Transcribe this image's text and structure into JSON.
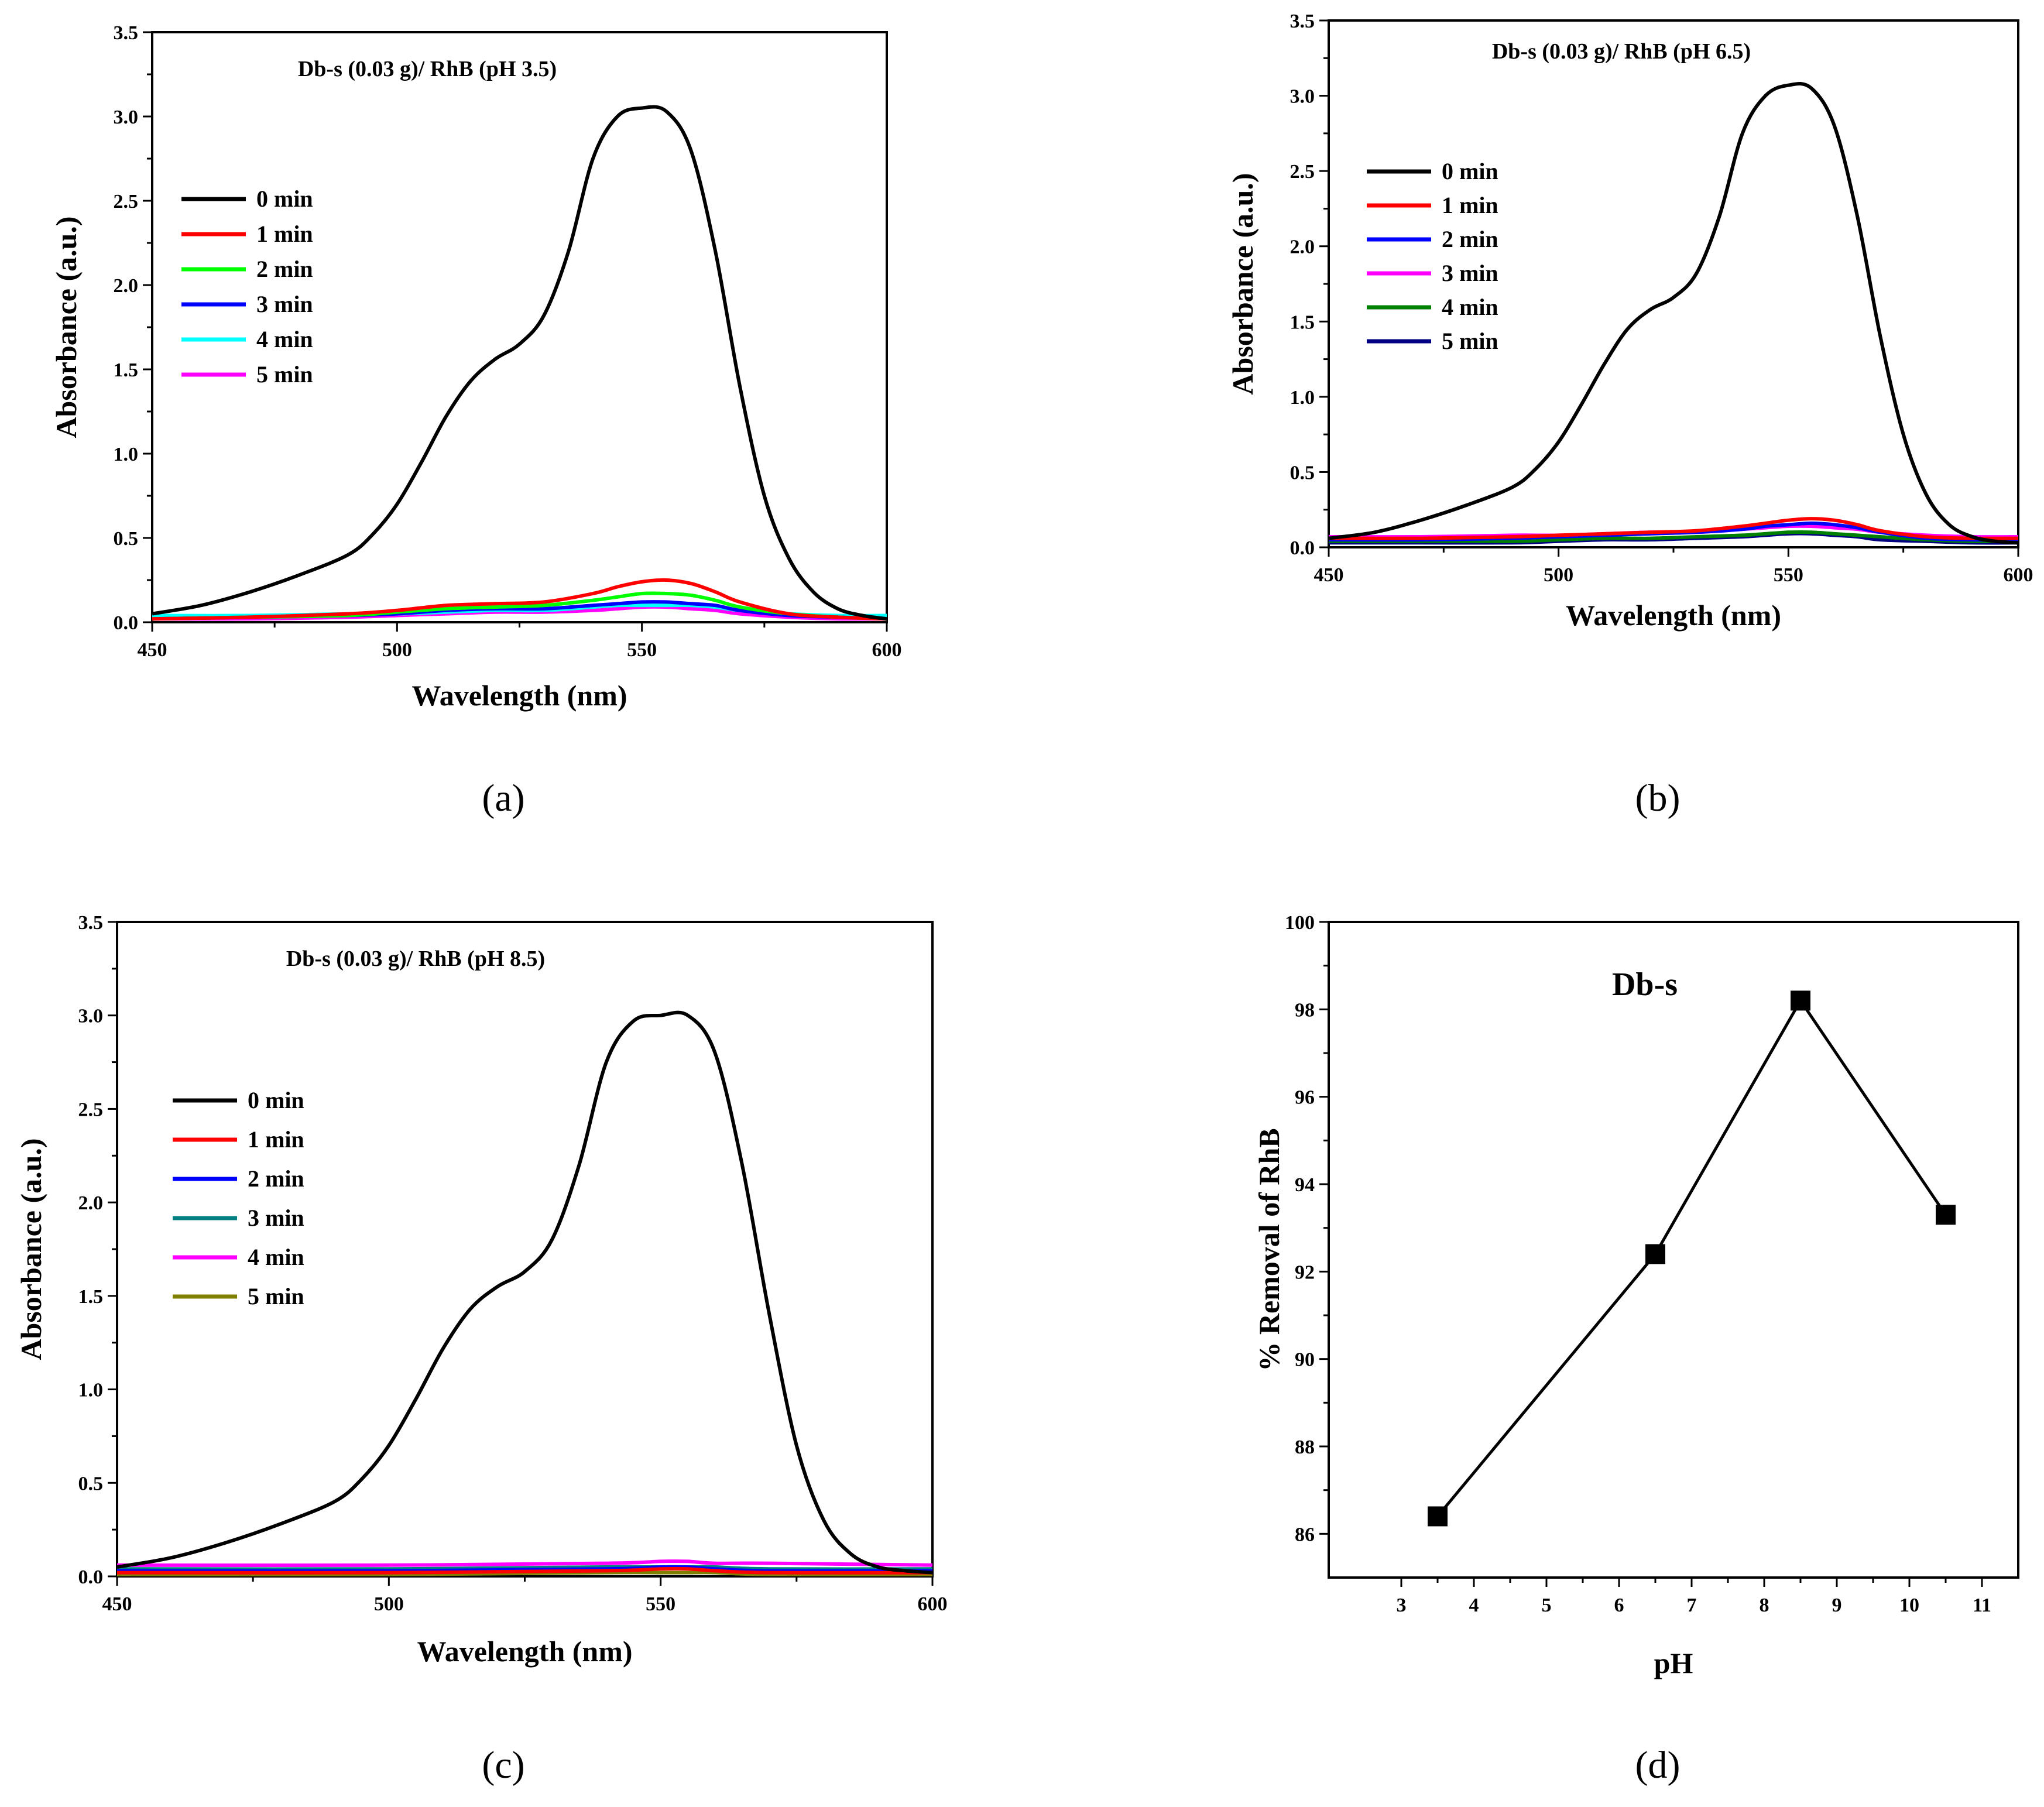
{
  "chart_data": [
    {
      "type": "line",
      "panel_label": "(a)",
      "title": "Db-s (0.03 g)/ RhB (pH 3.5)",
      "xlabel": "Wavelength (nm)",
      "ylabel": "Absorbance (a.u.)",
      "xlim": [
        450,
        600
      ],
      "ylim": [
        0,
        3.5
      ],
      "xticks": [
        "450",
        "500",
        "550",
        "600"
      ],
      "yticks": [
        "0.0",
        "0.5",
        "1.0",
        "1.5",
        "2.0",
        "2.5",
        "3.0",
        "3.5"
      ],
      "legend_position": "upper-left",
      "series": [
        {
          "name": "0 min",
          "color": "#000000",
          "x": [
            450,
            460,
            470,
            480,
            490,
            495,
            500,
            505,
            510,
            515,
            520,
            525,
            530,
            535,
            540,
            545,
            550,
            555,
            560,
            565,
            570,
            575,
            580,
            585,
            590,
            595,
            600
          ],
          "y": [
            0.05,
            0.1,
            0.18,
            0.28,
            0.4,
            0.52,
            0.7,
            0.95,
            1.22,
            1.43,
            1.56,
            1.65,
            1.82,
            2.2,
            2.75,
            3.0,
            3.05,
            3.03,
            2.8,
            2.2,
            1.4,
            0.75,
            0.38,
            0.18,
            0.08,
            0.04,
            0.02
          ]
        },
        {
          "name": "1 min",
          "color": "#ff0000",
          "x": [
            450,
            470,
            490,
            500,
            510,
            520,
            530,
            540,
            545,
            550,
            555,
            560,
            565,
            570,
            580,
            590,
            600
          ],
          "y": [
            0.02,
            0.03,
            0.05,
            0.07,
            0.1,
            0.11,
            0.12,
            0.17,
            0.21,
            0.24,
            0.25,
            0.23,
            0.18,
            0.12,
            0.05,
            0.03,
            0.02
          ]
        },
        {
          "name": "2 min",
          "color": "#00ff00",
          "x": [
            450,
            470,
            490,
            500,
            510,
            520,
            530,
            540,
            545,
            550,
            555,
            560,
            565,
            570,
            580,
            590,
            600
          ],
          "y": [
            0.02,
            0.03,
            0.04,
            0.06,
            0.08,
            0.09,
            0.1,
            0.13,
            0.15,
            0.17,
            0.17,
            0.16,
            0.13,
            0.09,
            0.05,
            0.03,
            0.02
          ]
        },
        {
          "name": "3 min",
          "color": "#0000ff",
          "x": [
            450,
            470,
            490,
            500,
            510,
            520,
            530,
            540,
            545,
            550,
            555,
            560,
            565,
            570,
            580,
            590,
            600
          ],
          "y": [
            0.02,
            0.03,
            0.04,
            0.05,
            0.07,
            0.08,
            0.08,
            0.1,
            0.11,
            0.12,
            0.12,
            0.11,
            0.1,
            0.07,
            0.04,
            0.03,
            0.02
          ]
        },
        {
          "name": "4 min",
          "color": "#00ffff",
          "x": [
            450,
            470,
            490,
            500,
            510,
            520,
            530,
            540,
            545,
            550,
            555,
            560,
            565,
            570,
            580,
            590,
            600
          ],
          "y": [
            0.04,
            0.04,
            0.05,
            0.05,
            0.06,
            0.07,
            0.07,
            0.09,
            0.1,
            0.1,
            0.1,
            0.1,
            0.09,
            0.07,
            0.05,
            0.04,
            0.04
          ]
        },
        {
          "name": "5 min",
          "color": "#ff00ff",
          "x": [
            450,
            470,
            490,
            500,
            510,
            520,
            530,
            540,
            545,
            550,
            555,
            560,
            565,
            570,
            580,
            590,
            600
          ],
          "y": [
            0.02,
            0.02,
            0.03,
            0.04,
            0.05,
            0.06,
            0.06,
            0.07,
            0.08,
            0.09,
            0.09,
            0.08,
            0.07,
            0.05,
            0.03,
            0.02,
            0.02
          ]
        }
      ]
    },
    {
      "type": "line",
      "panel_label": "(b)",
      "title": "Db-s (0.03 g)/ RhB (pH 6.5)",
      "xlabel": "Wavelength (nm)",
      "ylabel": "Absorbance (a.u.)",
      "xlim": [
        450,
        600
      ],
      "ylim": [
        0,
        3.5
      ],
      "xticks": [
        "450",
        "500",
        "550",
        "600"
      ],
      "yticks": [
        "0.0",
        "0.5",
        "1.0",
        "1.5",
        "2.0",
        "2.5",
        "3.0",
        "3.5"
      ],
      "legend_position": "upper-left",
      "series": [
        {
          "name": "0 min",
          "color": "#000000",
          "x": [
            450,
            460,
            470,
            480,
            490,
            495,
            500,
            505,
            510,
            515,
            520,
            525,
            530,
            535,
            540,
            545,
            550,
            555,
            560,
            565,
            570,
            575,
            580,
            585,
            590,
            595,
            600
          ],
          "y": [
            0.06,
            0.1,
            0.18,
            0.28,
            0.4,
            0.52,
            0.7,
            0.95,
            1.22,
            1.45,
            1.58,
            1.66,
            1.82,
            2.2,
            2.75,
            3.0,
            3.07,
            3.05,
            2.8,
            2.2,
            1.4,
            0.75,
            0.35,
            0.15,
            0.07,
            0.04,
            0.03
          ]
        },
        {
          "name": "1 min",
          "color": "#ff0000",
          "x": [
            450,
            470,
            490,
            500,
            510,
            520,
            530,
            540,
            545,
            550,
            555,
            560,
            565,
            570,
            580,
            590,
            600
          ],
          "y": [
            0.06,
            0.06,
            0.07,
            0.08,
            0.09,
            0.1,
            0.11,
            0.14,
            0.16,
            0.18,
            0.19,
            0.18,
            0.15,
            0.11,
            0.07,
            0.06,
            0.06
          ]
        },
        {
          "name": "2 min",
          "color": "#0000ff",
          "x": [
            450,
            470,
            490,
            500,
            510,
            520,
            530,
            540,
            545,
            550,
            555,
            560,
            565,
            570,
            580,
            590,
            600
          ],
          "y": [
            0.05,
            0.05,
            0.06,
            0.07,
            0.08,
            0.09,
            0.1,
            0.12,
            0.14,
            0.15,
            0.16,
            0.15,
            0.13,
            0.1,
            0.06,
            0.05,
            0.05
          ]
        },
        {
          "name": "3 min",
          "color": "#ff00ff",
          "x": [
            450,
            470,
            490,
            500,
            510,
            520,
            530,
            540,
            545,
            550,
            555,
            560,
            565,
            570,
            580,
            590,
            600
          ],
          "y": [
            0.07,
            0.07,
            0.08,
            0.08,
            0.09,
            0.1,
            0.1,
            0.12,
            0.13,
            0.14,
            0.14,
            0.13,
            0.12,
            0.1,
            0.08,
            0.07,
            0.07
          ]
        },
        {
          "name": "4 min",
          "color": "#008000",
          "x": [
            450,
            470,
            490,
            500,
            510,
            520,
            530,
            540,
            545,
            550,
            555,
            560,
            565,
            570,
            580,
            590,
            600
          ],
          "y": [
            0.04,
            0.04,
            0.04,
            0.05,
            0.06,
            0.06,
            0.07,
            0.08,
            0.09,
            0.1,
            0.1,
            0.09,
            0.08,
            0.07,
            0.05,
            0.04,
            0.04
          ]
        },
        {
          "name": "5 min",
          "color": "#000080",
          "x": [
            450,
            470,
            490,
            500,
            510,
            520,
            530,
            540,
            545,
            550,
            555,
            560,
            565,
            570,
            580,
            590,
            600
          ],
          "y": [
            0.03,
            0.03,
            0.03,
            0.04,
            0.05,
            0.05,
            0.06,
            0.07,
            0.08,
            0.09,
            0.09,
            0.08,
            0.07,
            0.05,
            0.04,
            0.03,
            0.03
          ]
        }
      ]
    },
    {
      "type": "line",
      "panel_label": "(c)",
      "title": "Db-s (0.03 g)/ RhB (pH 8.5)",
      "xlabel": "Wavelength (nm)",
      "ylabel": "Absorbance (a.u.)",
      "xlim": [
        450,
        600
      ],
      "ylim": [
        0,
        3.5
      ],
      "xticks": [
        "450",
        "500",
        "550",
        "600"
      ],
      "yticks": [
        "0.0",
        "0.5",
        "1.0",
        "1.5",
        "2.0",
        "2.5",
        "3.0",
        "3.5"
      ],
      "legend_position": "upper-left",
      "series": [
        {
          "name": "0 min",
          "color": "#000000",
          "x": [
            450,
            460,
            470,
            480,
            490,
            495,
            500,
            505,
            510,
            515,
            520,
            525,
            530,
            535,
            540,
            545,
            550,
            555,
            560,
            565,
            570,
            575,
            580,
            585,
            590,
            595,
            600
          ],
          "y": [
            0.05,
            0.1,
            0.18,
            0.28,
            0.4,
            0.52,
            0.7,
            0.95,
            1.22,
            1.43,
            1.55,
            1.63,
            1.8,
            2.2,
            2.75,
            2.97,
            3.0,
            3.0,
            2.8,
            2.2,
            1.4,
            0.7,
            0.3,
            0.12,
            0.05,
            0.03,
            0.02
          ]
        },
        {
          "name": "1 min",
          "color": "#ff0000",
          "x": [
            450,
            500,
            540,
            550,
            555,
            560,
            570,
            600
          ],
          "y": [
            0.02,
            0.02,
            0.03,
            0.04,
            0.04,
            0.03,
            0.02,
            0.02
          ]
        },
        {
          "name": "2 min",
          "color": "#0000ff",
          "x": [
            450,
            500,
            540,
            550,
            555,
            560,
            570,
            600
          ],
          "y": [
            0.03,
            0.03,
            0.04,
            0.05,
            0.05,
            0.04,
            0.03,
            0.03
          ]
        },
        {
          "name": "3 min",
          "color": "#008080",
          "x": [
            450,
            500,
            540,
            550,
            555,
            560,
            570,
            600
          ],
          "y": [
            0.04,
            0.04,
            0.05,
            0.05,
            0.05,
            0.05,
            0.04,
            0.04
          ]
        },
        {
          "name": "4 min",
          "color": "#ff00ff",
          "x": [
            450,
            500,
            540,
            550,
            555,
            560,
            570,
            600
          ],
          "y": [
            0.06,
            0.06,
            0.07,
            0.08,
            0.08,
            0.07,
            0.07,
            0.06
          ]
        },
        {
          "name": "5 min",
          "color": "#808000",
          "x": [
            450,
            500,
            540,
            550,
            555,
            560,
            570,
            600
          ],
          "y": [
            0.01,
            0.01,
            0.02,
            0.02,
            0.02,
            0.02,
            0.01,
            0.01
          ]
        }
      ]
    },
    {
      "type": "line",
      "panel_label": "(d)",
      "title": "Db-s",
      "xlabel": "pH",
      "ylabel": "% Removal of RhB",
      "xlim": [
        2,
        11.5
      ],
      "ylim": [
        85,
        100
      ],
      "xticks": [
        "3",
        "4",
        "5",
        "6",
        "7",
        "8",
        "9",
        "10",
        "11"
      ],
      "yticks": [
        "86",
        "88",
        "90",
        "92",
        "94",
        "96",
        "98",
        "100"
      ],
      "marker": "square",
      "series": [
        {
          "name": "Db-s",
          "color": "#000000",
          "x": [
            3.5,
            6.5,
            8.5,
            10.5
          ],
          "y": [
            86.4,
            92.4,
            98.2,
            93.3
          ]
        }
      ]
    }
  ]
}
